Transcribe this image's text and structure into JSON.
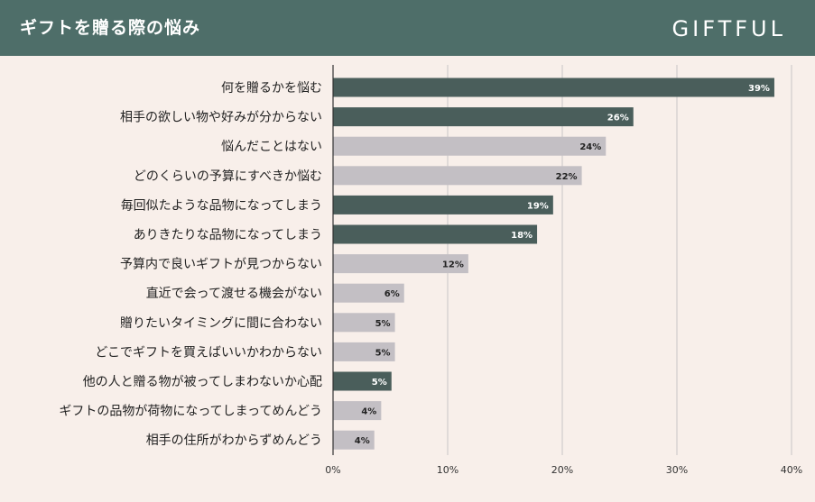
{
  "header": {
    "title": "ギフトを贈る際の悩み",
    "brand": "GIFTFUL"
  },
  "colors": {
    "header_bg": "#4e6e69",
    "background": "#f8efea",
    "highlight_bar": "#4a5e5b",
    "normal_bar": "#c3bfc4",
    "grid": "#c9c6c6"
  },
  "chart_data": {
    "type": "bar",
    "orientation": "horizontal",
    "xlim": [
      0,
      40
    ],
    "xticks": [
      "0%",
      "10%",
      "20%",
      "30%",
      "40%"
    ],
    "grid": true,
    "categories": [
      "何を贈るかを悩む",
      "相手の欲しい物や好みが分からない",
      "悩んだことはない",
      "どのくらいの予算にすべきか悩む",
      "毎回似たような品物になってしまう",
      "ありきたりな品物になってしまう",
      "予算内で良いギフトが見つからない",
      "直近で会って渡せる機会がない",
      "贈りたいタイミングに間に合わない",
      "どこでギフトを買えばいいかわからない",
      "他の人と贈る物が被ってしまわないか心配",
      "ギフトの品物が荷物になってしまってめんどう",
      "相手の住所がわからずめんどう"
    ],
    "values": [
      38.5,
      26.2,
      23.8,
      21.7,
      19.2,
      17.8,
      11.8,
      6.2,
      5.4,
      5.4,
      5.1,
      4.2,
      3.6
    ],
    "labels": [
      "39%",
      "26%",
      "24%",
      "22%",
      "19%",
      "18%",
      "12%",
      "6%",
      "5%",
      "5%",
      "5%",
      "4%",
      "4%"
    ],
    "highlighted": [
      true,
      true,
      false,
      false,
      true,
      true,
      false,
      false,
      false,
      false,
      true,
      false,
      false
    ]
  }
}
